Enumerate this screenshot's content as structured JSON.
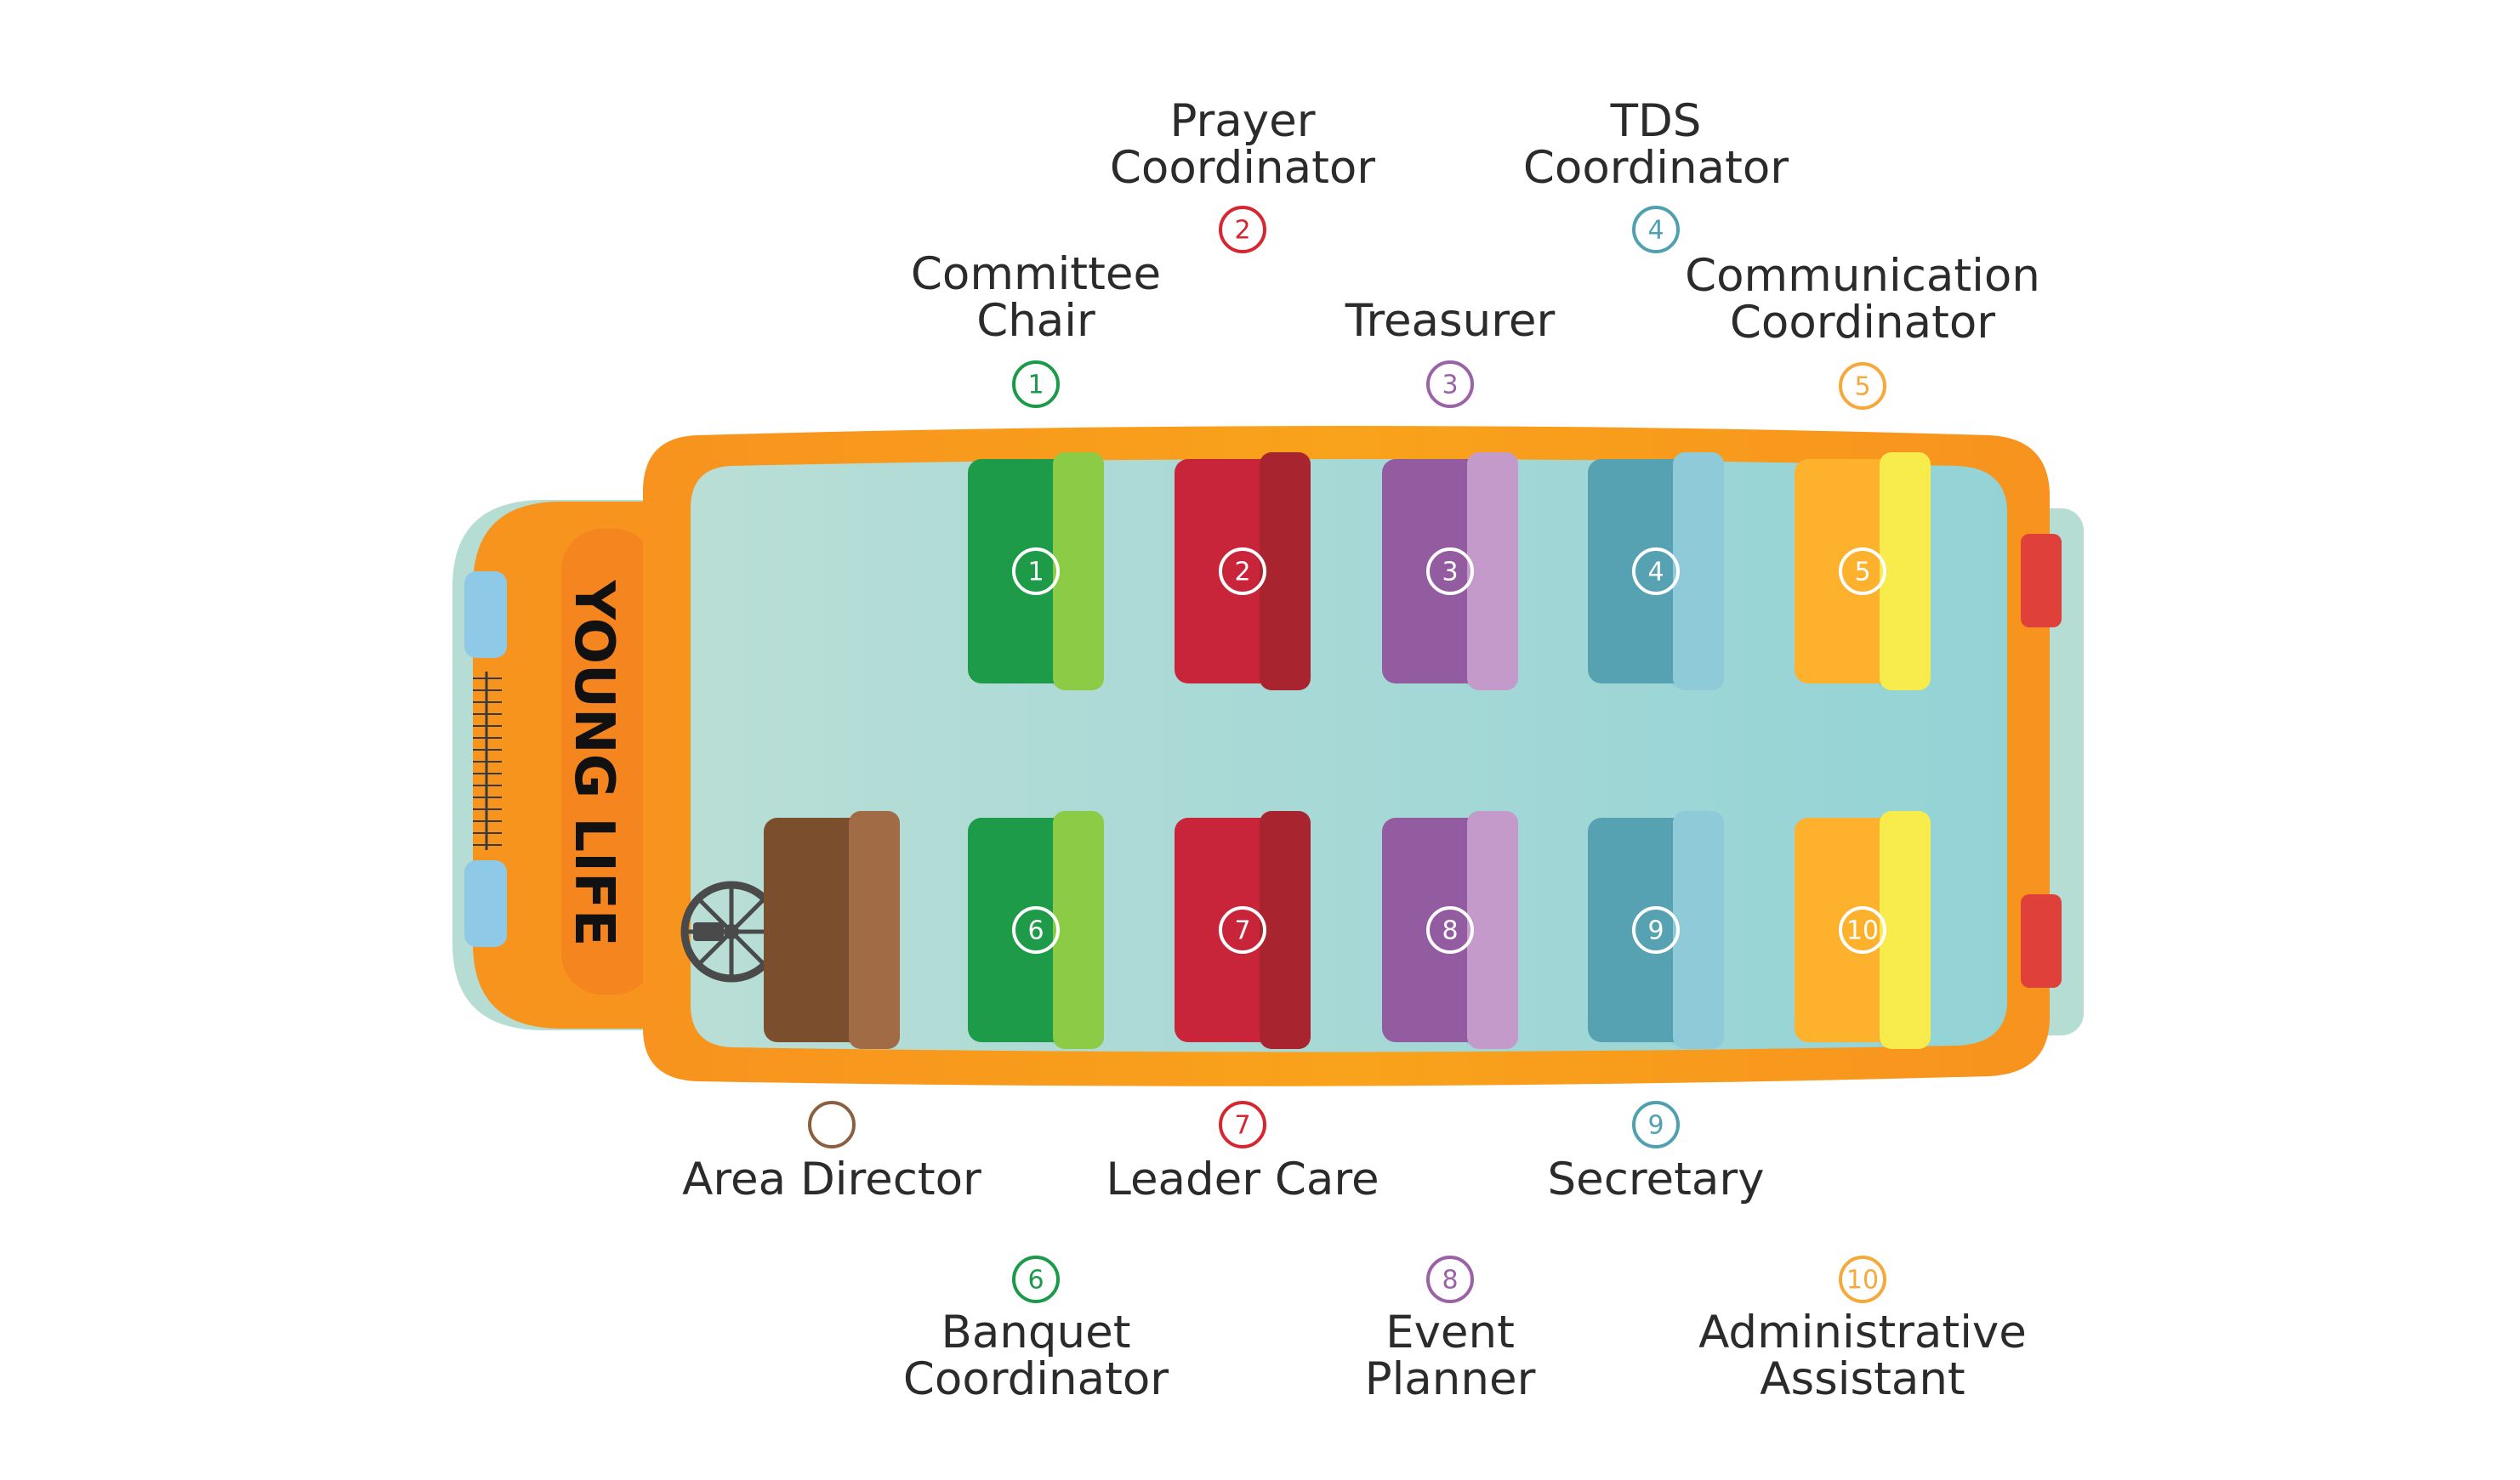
{
  "brand": {
    "text": "YOUNG LIFE"
  },
  "colors": {
    "bus_body": "#F7941D",
    "bus_floor": "#B6DDD3",
    "bus_floor_right": "#93D3D6",
    "tail_light": "#E0403A",
    "headlight": "#8FC9E8",
    "wheel": "#4A4A4A"
  },
  "seats": [
    {
      "num": "1",
      "role": [
        "Committee",
        "Chair"
      ],
      "color": "#1E9B48",
      "highlight": "#8CCB45",
      "label_color": "#1B9A4A"
    },
    {
      "num": "2",
      "role": [
        "Prayer",
        "Coordinator"
      ],
      "color": "#C8243A",
      "highlight": "#A8252F",
      "label_color": "#D6262F"
    },
    {
      "num": "3",
      "role": [
        "Treasurer"
      ],
      "color": "#935CA0",
      "highlight": "#C39ACA",
      "label_color": "#9B62A8"
    },
    {
      "num": "4",
      "role": [
        "TDS",
        "Coordinator"
      ],
      "color": "#56A2B2",
      "highlight": "#8FCAD8",
      "label_color": "#4FA0B0"
    },
    {
      "num": "5",
      "role": [
        "Communication",
        "Coordinator"
      ],
      "color": "#FDB12D",
      "highlight": "#F8EC4C",
      "label_color": "#F6A93B"
    },
    {
      "num": "6",
      "role": [
        "Banquet",
        "Coordinator"
      ],
      "color": "#1E9B48",
      "highlight": "#8CCB45",
      "label_color": "#1B9A4A"
    },
    {
      "num": "7",
      "role": [
        "Leader Care"
      ],
      "color": "#C8243A",
      "highlight": "#A8252F",
      "label_color": "#D6262F"
    },
    {
      "num": "8",
      "role": [
        "Event",
        "Planner"
      ],
      "color": "#935CA0",
      "highlight": "#C39ACA",
      "label_color": "#9B62A8"
    },
    {
      "num": "9",
      "role": [
        "Secretary"
      ],
      "color": "#56A2B2",
      "highlight": "#8FCAD8",
      "label_color": "#4FA0B0"
    },
    {
      "num": "10",
      "role": [
        "Administrative",
        "Assistant"
      ],
      "color": "#FDB12D",
      "highlight": "#F8EC4C",
      "label_color": "#F6A93B"
    }
  ],
  "driver": {
    "num": "",
    "role": [
      "Area Director"
    ],
    "color": "#7B4F2E",
    "highlight": "#A06B45",
    "label_color": "#8B6040"
  }
}
